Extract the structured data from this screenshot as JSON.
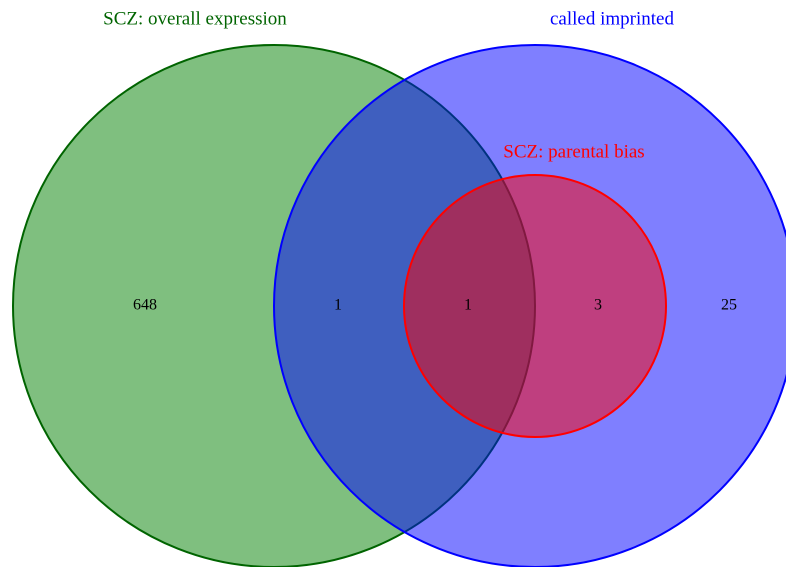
{
  "sets": [
    {
      "label": "SCZ: overall expression",
      "color": "#008000",
      "stroke": "#006400"
    },
    {
      "label": "called imprinted",
      "color": "#0000ff",
      "stroke": "#0000ff"
    },
    {
      "label": "SCZ: parental bias",
      "color": "#ff0000",
      "stroke": "#ff0000"
    }
  ],
  "regions": [
    "648",
    "1",
    "1",
    "3",
    "25"
  ]
}
